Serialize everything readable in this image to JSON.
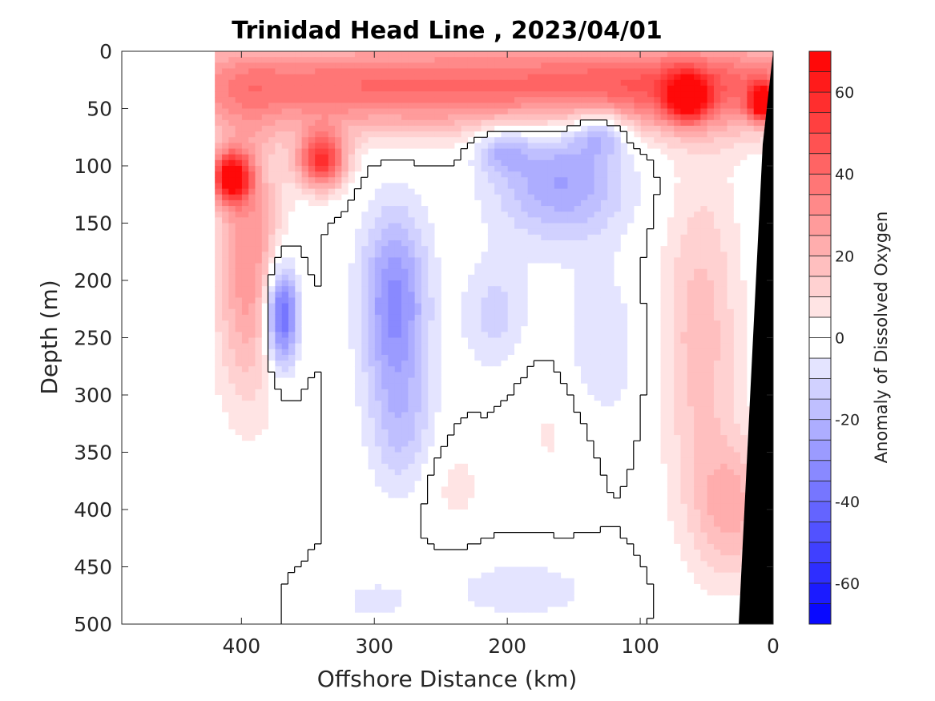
{
  "chart_data": {
    "type": "heatmap",
    "title": "Trinidad Head Line , 2023/04/01",
    "xlabel": "Offshore Distance (km)",
    "ylabel": "Depth (m)",
    "xlim": [
      490,
      0
    ],
    "ylim": [
      0,
      500
    ],
    "y_reversed": true,
    "x_reversed": true,
    "x_ticks": [
      400,
      300,
      200,
      100,
      0
    ],
    "y_ticks": [
      0,
      50,
      100,
      150,
      200,
      250,
      300,
      350,
      400,
      450,
      500
    ],
    "colorbar": {
      "label": "Anomaly of Dissolved Oxygen",
      "range": [
        -70,
        70
      ],
      "step": 5,
      "ticks": [
        -60,
        -40,
        -20,
        0,
        20,
        40,
        60
      ],
      "low_color": "#0000ff",
      "mid_color": "#ffffff",
      "high_color": "#ff0000"
    },
    "data_extent_x": [
      0,
      420
    ],
    "contour_level": 0,
    "contour_color": "#000000",
    "seafloor_color": "#000000",
    "blobs": [
      {
        "x": 60,
        "y": 30,
        "sx": 150,
        "sy": 40,
        "v": 38
      },
      {
        "x": 320,
        "y": 30,
        "sx": 200,
        "sy": 40,
        "v": 38
      },
      {
        "x": 408,
        "y": 110,
        "sx": 14,
        "sy": 22,
        "v": 66
      },
      {
        "x": 340,
        "y": 95,
        "sx": 18,
        "sy": 25,
        "v": 55
      },
      {
        "x": 395,
        "y": 180,
        "sx": 25,
        "sy": 120,
        "v": 30
      },
      {
        "x": 65,
        "y": 40,
        "sx": 15,
        "sy": 20,
        "v": 52
      },
      {
        "x": 8,
        "y": 45,
        "sx": 10,
        "sy": 15,
        "v": 60
      },
      {
        "x": 55,
        "y": 250,
        "sx": 30,
        "sy": 150,
        "v": 18
      },
      {
        "x": 30,
        "y": 400,
        "sx": 30,
        "sy": 60,
        "v": 20
      },
      {
        "x": 370,
        "y": 230,
        "sx": 12,
        "sy": 45,
        "v": -48
      },
      {
        "x": 285,
        "y": 220,
        "sx": 25,
        "sy": 80,
        "v": -32
      },
      {
        "x": 280,
        "y": 330,
        "sx": 25,
        "sy": 60,
        "v": -14
      },
      {
        "x": 160,
        "y": 110,
        "sx": 50,
        "sy": 55,
        "v": -26
      },
      {
        "x": 130,
        "y": 70,
        "sx": 20,
        "sy": 20,
        "v": -22
      },
      {
        "x": 205,
        "y": 85,
        "sx": 20,
        "sy": 20,
        "v": -18
      },
      {
        "x": 210,
        "y": 230,
        "sx": 25,
        "sy": 50,
        "v": -12
      },
      {
        "x": 130,
        "y": 260,
        "sx": 30,
        "sy": 70,
        "v": -10
      },
      {
        "x": 190,
        "y": 470,
        "sx": 60,
        "sy": 30,
        "v": -8
      },
      {
        "x": 300,
        "y": 480,
        "sx": 30,
        "sy": 20,
        "v": -7
      },
      {
        "x": 165,
        "y": 330,
        "sx": 30,
        "sy": 60,
        "v": 6
      },
      {
        "x": 240,
        "y": 380,
        "sx": 25,
        "sy": 40,
        "v": 7
      }
    ]
  }
}
